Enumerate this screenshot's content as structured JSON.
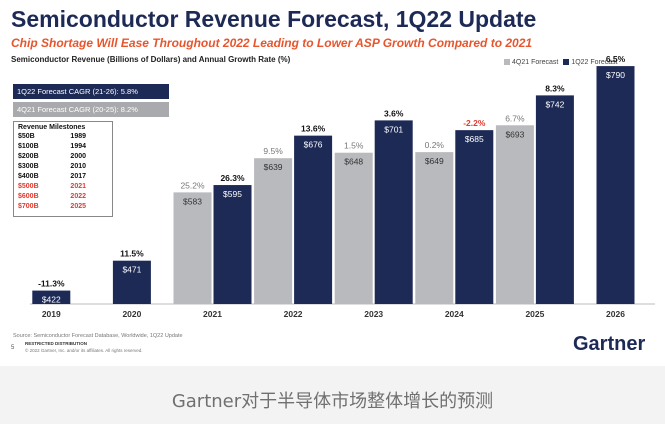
{
  "title": "Semiconductor Revenue Forecast, 1Q22 Update",
  "subtitle": "Chip Shortage Will Ease Throughout 2022 Leading to Lower ASP Growth Compared to 2021",
  "chart_label": "Semiconductor Revenue (Billions of Dollars) and Annual Growth Rate (%)",
  "cagr_1q22": "1Q22 Forecast CAGR (21-26): 5.8%",
  "cagr_4q21": "4Q21 Forecast CAGR (20-25): 8.2%",
  "milestones": {
    "title": "Revenue Milestones",
    "rows": [
      {
        "label": "$50B",
        "year": "1989",
        "highlight": false
      },
      {
        "label": "$100B",
        "year": "1994",
        "highlight": false
      },
      {
        "label": "$200B",
        "year": "2000",
        "highlight": false
      },
      {
        "label": "$300B",
        "year": "2010",
        "highlight": false
      },
      {
        "label": "$400B",
        "year": "2017",
        "highlight": false
      },
      {
        "label": "$500B",
        "year": "2021",
        "highlight": true
      },
      {
        "label": "$600B",
        "year": "2022",
        "highlight": true
      },
      {
        "label": "$700B",
        "year": "2025",
        "highlight": true
      }
    ]
  },
  "source": "Source: Semiconductor Forecast Database, Worldwide, 1Q22 Update",
  "page_number": "5",
  "restricted": "RESTRICTED DISTRIBUTION",
  "copyright": "© 2022 Gartner, Inc. and/or its affiliates. All rights reserved.",
  "brand": "Gartner",
  "caption": "Gartner对于半导体市场整体增长的预测",
  "colors": {
    "forecast_4q21": "#b9babd",
    "forecast_1q22": "#1d2a56",
    "negative": "#e03a2f",
    "subtitle": "#e8552d"
  },
  "chart_data": {
    "type": "bar",
    "categories": [
      "2019",
      "2020",
      "2021",
      "2022",
      "2023",
      "2024",
      "2025",
      "2026"
    ],
    "series": [
      {
        "name": "4Q21 Forecast",
        "values": [
          null,
          null,
          583,
          639,
          648,
          649,
          693,
          null
        ],
        "growth": [
          null,
          null,
          "25.2%",
          "9.5%",
          "1.5%",
          "0.2%",
          "6.7%",
          null
        ]
      },
      {
        "name": "1Q22 Forecast",
        "values": [
          422,
          471,
          595,
          676,
          701,
          685,
          742,
          790
        ],
        "growth": [
          "-11.3%",
          "11.5%",
          "26.3%",
          "13.6%",
          "3.6%",
          "-2.2%",
          "8.3%",
          "6.5%"
        ]
      }
    ],
    "value_prefix": "$",
    "ylim": [
      400,
      800
    ],
    "legend": "top-right",
    "grid": false
  }
}
